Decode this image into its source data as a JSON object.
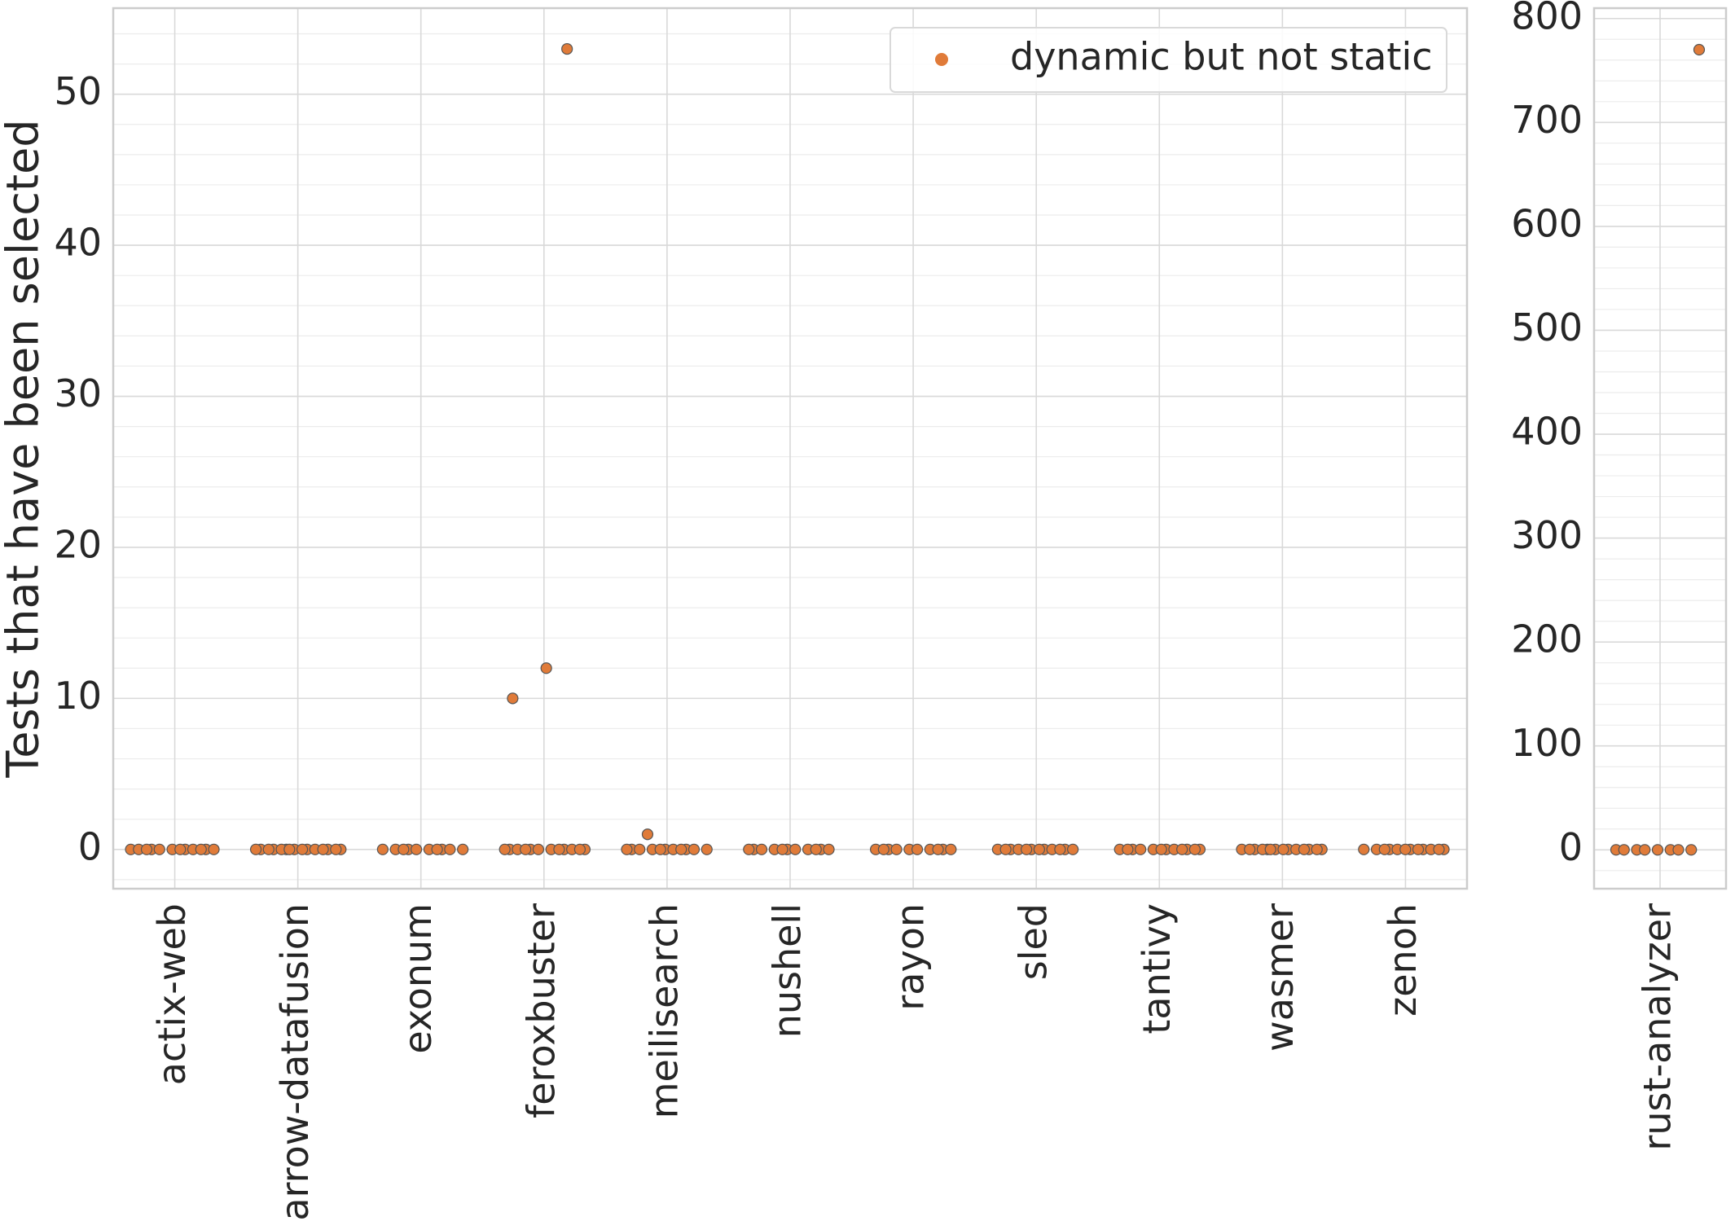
{
  "chart_data": [
    {
      "type": "strip",
      "ylabel": "Tests that have been selected",
      "categories": [
        "actix-web",
        "arrow-datafusion",
        "exonum",
        "feroxbuster",
        "meilisearch",
        "nushell",
        "rayon",
        "sled",
        "tantivy",
        "wasmer",
        "zenoh"
      ],
      "values": [
        [
          0,
          0,
          0,
          0,
          0,
          0,
          0,
          0,
          0,
          0,
          0,
          0
        ],
        [
          0,
          0,
          0,
          0,
          0,
          0,
          0,
          0,
          0,
          0,
          0,
          0,
          0,
          0,
          0
        ],
        [
          0,
          0,
          0,
          0,
          0,
          0,
          0,
          0,
          0,
          0
        ],
        [
          0,
          0,
          0,
          0,
          0,
          0,
          0,
          0,
          0,
          0,
          0,
          0,
          12,
          10,
          53
        ],
        [
          0,
          0,
          0,
          0,
          0,
          0,
          0,
          0,
          0,
          0,
          0,
          1
        ],
        [
          0,
          0,
          0,
          0,
          0,
          0,
          0,
          0,
          0,
          0,
          0
        ],
        [
          0,
          0,
          0,
          0,
          0,
          0,
          0,
          0,
          0,
          0
        ],
        [
          0,
          0,
          0,
          0,
          0,
          0,
          0,
          0,
          0,
          0,
          0,
          0
        ],
        [
          0,
          0,
          0,
          0,
          0,
          0,
          0,
          0,
          0,
          0,
          0,
          0
        ],
        [
          0,
          0,
          0,
          0,
          0,
          0,
          0,
          0,
          0,
          0,
          0,
          0,
          0,
          0
        ],
        [
          0,
          0,
          0,
          0,
          0,
          0,
          0,
          0,
          0,
          0,
          0,
          0
        ]
      ],
      "color": "#e07b39",
      "legend": "dynamic but not static",
      "legend_position": "upper right",
      "ylim": [
        -2.6,
        55.7
      ],
      "yticks": [
        0,
        10,
        20,
        30,
        40,
        50
      ],
      "minor_grid_step": 2,
      "grid": true
    },
    {
      "type": "strip",
      "categories": [
        "rust-analyzer"
      ],
      "values": [
        [
          0,
          0,
          0,
          0,
          0,
          0,
          0,
          0,
          770
        ]
      ],
      "color": "#e07b39",
      "ylim": [
        -37.4,
        810
      ],
      "yticks": [
        0,
        100,
        200,
        300,
        400,
        500,
        600,
        700,
        800
      ],
      "minor_grid_step": 20,
      "grid": true
    }
  ]
}
